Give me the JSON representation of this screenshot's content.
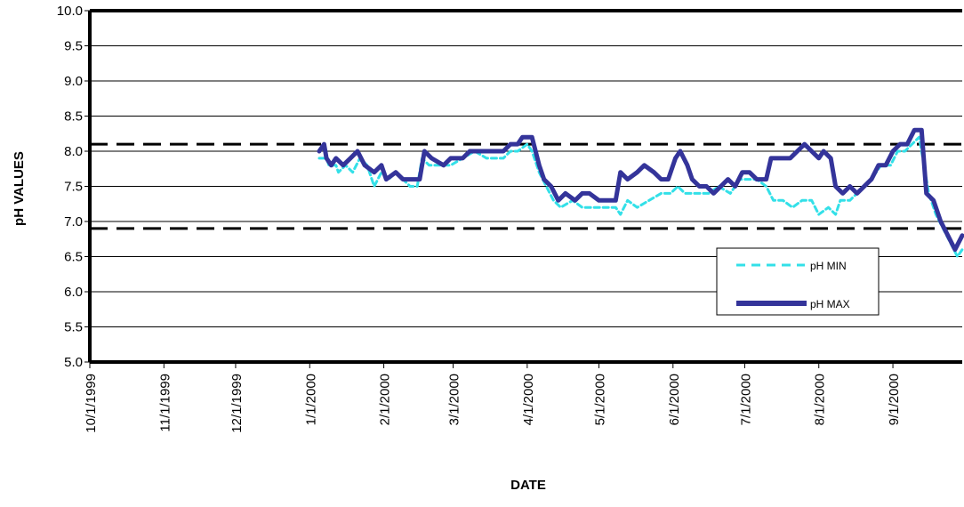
{
  "chart_data": {
    "type": "line",
    "title": "",
    "xlabel": "DATE",
    "ylabel": "pH VALUES",
    "ylim": [
      5.0,
      10.0
    ],
    "xlim": [
      "1999-10-01",
      "2000-09-30"
    ],
    "y_ticks": [
      "5.0",
      "5.5",
      "6.0",
      "6.5",
      "7.0",
      "7.5",
      "8.0",
      "8.5",
      "9.0",
      "9.5",
      "10.0"
    ],
    "x_ticks": [
      "10/1/1999",
      "11/1/1999",
      "12/1/1999",
      "1/1/2000",
      "2/1/2000",
      "3/1/2000",
      "4/1/2000",
      "5/1/2000",
      "6/1/2000",
      "7/1/2000",
      "8/1/2000",
      "9/1/2000"
    ],
    "grid": true,
    "legend_position": "right",
    "reference_lines": [
      8.1,
      6.9
    ],
    "series": [
      {
        "name": "pH MIN",
        "color": "#33e0e8",
        "style": "dashed",
        "points": [
          [
            "2000-01-05",
            7.9
          ],
          [
            "2000-01-08",
            7.9
          ],
          [
            "2000-01-09",
            7.8
          ],
          [
            "2000-01-12",
            7.8
          ],
          [
            "2000-01-13",
            7.7
          ],
          [
            "2000-01-16",
            7.8
          ],
          [
            "2000-01-19",
            7.7
          ],
          [
            "2000-01-22",
            7.9
          ],
          [
            "2000-01-25",
            7.8
          ],
          [
            "2000-01-28",
            7.5
          ],
          [
            "2000-01-31",
            7.7
          ],
          [
            "2000-02-03",
            7.6
          ],
          [
            "2000-02-06",
            7.7
          ],
          [
            "2000-02-09",
            7.6
          ],
          [
            "2000-02-12",
            7.5
          ],
          [
            "2000-02-15",
            7.5
          ],
          [
            "2000-02-17",
            7.9
          ],
          [
            "2000-02-20",
            7.8
          ],
          [
            "2000-02-25",
            7.8
          ],
          [
            "2000-02-29",
            7.8
          ],
          [
            "2000-03-05",
            7.9
          ],
          [
            "2000-03-10",
            8.0
          ],
          [
            "2000-03-15",
            7.9
          ],
          [
            "2000-03-22",
            7.9
          ],
          [
            "2000-03-25",
            8.0
          ],
          [
            "2000-03-28",
            8.0
          ],
          [
            "2000-04-01",
            8.1
          ],
          [
            "2000-04-03",
            8.0
          ],
          [
            "2000-04-06",
            7.7
          ],
          [
            "2000-04-09",
            7.5
          ],
          [
            "2000-04-12",
            7.3
          ],
          [
            "2000-04-15",
            7.2
          ],
          [
            "2000-04-20",
            7.3
          ],
          [
            "2000-04-24",
            7.2
          ],
          [
            "2000-05-01",
            7.2
          ],
          [
            "2000-05-08",
            7.2
          ],
          [
            "2000-05-10",
            7.1
          ],
          [
            "2000-05-13",
            7.3
          ],
          [
            "2000-05-17",
            7.2
          ],
          [
            "2000-05-22",
            7.3
          ],
          [
            "2000-05-27",
            7.4
          ],
          [
            "2000-05-31",
            7.4
          ],
          [
            "2000-06-03",
            7.5
          ],
          [
            "2000-06-06",
            7.4
          ],
          [
            "2000-06-11",
            7.4
          ],
          [
            "2000-06-16",
            7.4
          ],
          [
            "2000-06-20",
            7.5
          ],
          [
            "2000-06-25",
            7.4
          ],
          [
            "2000-06-29",
            7.6
          ],
          [
            "2000-07-03",
            7.6
          ],
          [
            "2000-07-06",
            7.6
          ],
          [
            "2000-07-10",
            7.5
          ],
          [
            "2000-07-13",
            7.3
          ],
          [
            "2000-07-17",
            7.3
          ],
          [
            "2000-07-21",
            7.2
          ],
          [
            "2000-07-25",
            7.3
          ],
          [
            "2000-07-29",
            7.3
          ],
          [
            "2000-08-01",
            7.1
          ],
          [
            "2000-08-05",
            7.2
          ],
          [
            "2000-08-08",
            7.1
          ],
          [
            "2000-08-10",
            7.3
          ],
          [
            "2000-08-14",
            7.3
          ],
          [
            "2000-08-17",
            7.4
          ],
          [
            "2000-08-20",
            7.5
          ],
          [
            "2000-08-23",
            7.6
          ],
          [
            "2000-08-27",
            7.8
          ],
          [
            "2000-08-31",
            7.8
          ],
          [
            "2000-09-03",
            8.0
          ],
          [
            "2000-09-06",
            8.0
          ],
          [
            "2000-09-09",
            8.1
          ],
          [
            "2000-09-12",
            8.2
          ],
          [
            "2000-09-14",
            7.8
          ],
          [
            "2000-09-16",
            7.4
          ],
          [
            "2000-09-19",
            7.1
          ],
          [
            "2000-09-22",
            6.9
          ],
          [
            "2000-09-25",
            6.7
          ],
          [
            "2000-09-28",
            6.5
          ],
          [
            "2000-09-30",
            6.6
          ]
        ]
      },
      {
        "name": "pH MAX",
        "color": "#34349a",
        "style": "solid",
        "points": [
          [
            "2000-01-05",
            8.0
          ],
          [
            "2000-01-07",
            8.1
          ],
          [
            "2000-01-08",
            7.9
          ],
          [
            "2000-01-10",
            7.8
          ],
          [
            "2000-01-12",
            7.9
          ],
          [
            "2000-01-15",
            7.8
          ],
          [
            "2000-01-18",
            7.9
          ],
          [
            "2000-01-21",
            8.0
          ],
          [
            "2000-01-24",
            7.8
          ],
          [
            "2000-01-28",
            7.7
          ],
          [
            "2000-01-31",
            7.8
          ],
          [
            "2000-02-02",
            7.6
          ],
          [
            "2000-02-06",
            7.7
          ],
          [
            "2000-02-09",
            7.6
          ],
          [
            "2000-02-13",
            7.6
          ],
          [
            "2000-02-16",
            7.6
          ],
          [
            "2000-02-18",
            8.0
          ],
          [
            "2000-02-21",
            7.9
          ],
          [
            "2000-02-26",
            7.8
          ],
          [
            "2000-02-29",
            7.9
          ],
          [
            "2000-03-05",
            7.9
          ],
          [
            "2000-03-08",
            8.0
          ],
          [
            "2000-03-15",
            8.0
          ],
          [
            "2000-03-22",
            8.0
          ],
          [
            "2000-03-25",
            8.1
          ],
          [
            "2000-03-28",
            8.1
          ],
          [
            "2000-03-30",
            8.2
          ],
          [
            "2000-04-03",
            8.2
          ],
          [
            "2000-04-06",
            7.8
          ],
          [
            "2000-04-08",
            7.6
          ],
          [
            "2000-04-11",
            7.5
          ],
          [
            "2000-04-14",
            7.3
          ],
          [
            "2000-04-17",
            7.4
          ],
          [
            "2000-04-21",
            7.3
          ],
          [
            "2000-04-24",
            7.4
          ],
          [
            "2000-04-27",
            7.4
          ],
          [
            "2000-05-01",
            7.3
          ],
          [
            "2000-05-08",
            7.3
          ],
          [
            "2000-05-10",
            7.7
          ],
          [
            "2000-05-13",
            7.6
          ],
          [
            "2000-05-17",
            7.7
          ],
          [
            "2000-05-20",
            7.8
          ],
          [
            "2000-05-24",
            7.7
          ],
          [
            "2000-05-27",
            7.6
          ],
          [
            "2000-05-30",
            7.6
          ],
          [
            "2000-06-02",
            7.9
          ],
          [
            "2000-06-04",
            8.0
          ],
          [
            "2000-06-07",
            7.8
          ],
          [
            "2000-06-09",
            7.6
          ],
          [
            "2000-06-12",
            7.5
          ],
          [
            "2000-06-15",
            7.5
          ],
          [
            "2000-06-18",
            7.4
          ],
          [
            "2000-06-21",
            7.5
          ],
          [
            "2000-06-24",
            7.6
          ],
          [
            "2000-06-27",
            7.5
          ],
          [
            "2000-06-30",
            7.7
          ],
          [
            "2000-07-03",
            7.7
          ],
          [
            "2000-07-06",
            7.6
          ],
          [
            "2000-07-10",
            7.6
          ],
          [
            "2000-07-12",
            7.9
          ],
          [
            "2000-07-16",
            7.9
          ],
          [
            "2000-07-20",
            7.9
          ],
          [
            "2000-07-23",
            8.0
          ],
          [
            "2000-07-26",
            8.1
          ],
          [
            "2000-07-29",
            8.0
          ],
          [
            "2000-08-01",
            7.9
          ],
          [
            "2000-08-03",
            8.0
          ],
          [
            "2000-08-06",
            7.9
          ],
          [
            "2000-08-08",
            7.5
          ],
          [
            "2000-08-11",
            7.4
          ],
          [
            "2000-08-14",
            7.5
          ],
          [
            "2000-08-17",
            7.4
          ],
          [
            "2000-08-20",
            7.5
          ],
          [
            "2000-08-23",
            7.6
          ],
          [
            "2000-08-26",
            7.8
          ],
          [
            "2000-08-29",
            7.8
          ],
          [
            "2000-09-01",
            8.0
          ],
          [
            "2000-09-04",
            8.1
          ],
          [
            "2000-09-07",
            8.1
          ],
          [
            "2000-09-10",
            8.3
          ],
          [
            "2000-09-13",
            8.3
          ],
          [
            "2000-09-15",
            7.4
          ],
          [
            "2000-09-18",
            7.3
          ],
          [
            "2000-09-21",
            7.0
          ],
          [
            "2000-09-24",
            6.8
          ],
          [
            "2000-09-27",
            6.6
          ],
          [
            "2000-09-30",
            6.8
          ]
        ]
      }
    ]
  }
}
